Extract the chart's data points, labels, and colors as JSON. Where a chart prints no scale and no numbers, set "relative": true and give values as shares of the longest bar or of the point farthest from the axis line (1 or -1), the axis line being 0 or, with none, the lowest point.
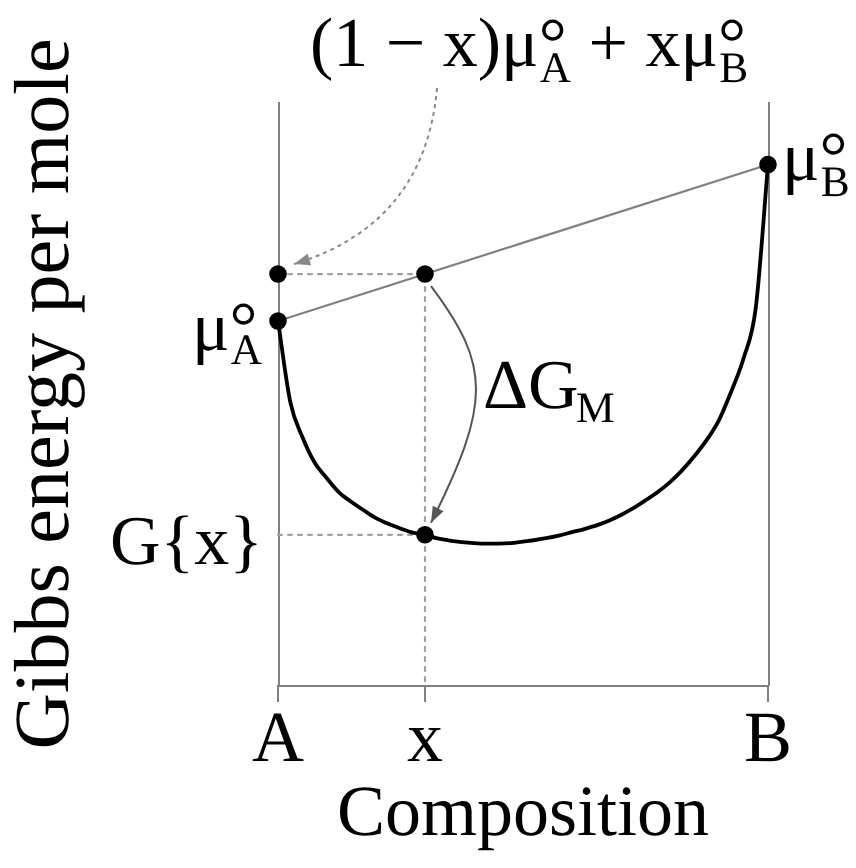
{
  "chart_data": {
    "type": "line",
    "xlabel": "Composition",
    "ylabel": "Gibbs energy per mole",
    "relative": true,
    "categories": [
      "A",
      null,
      null,
      null,
      null,
      null,
      null,
      null,
      null,
      null,
      null,
      null,
      "x",
      null,
      null,
      null,
      null,
      null,
      null,
      null,
      null,
      null,
      null,
      null,
      null,
      null,
      null,
      null,
      null,
      null,
      null,
      null,
      null,
      null,
      null,
      null,
      null,
      null,
      null,
      null,
      "B"
    ],
    "tick_labels": "x",
    "grid": false,
    "legend": false,
    "marker": "none",
    "series": [
      {
        "color": "#000000",
        "values": [
          0.7,
          0.545,
          0.477,
          0.428,
          0.398,
          0.371,
          0.353,
          0.337,
          0.322,
          0.311,
          0.302,
          0.294,
          0.29,
          0.283,
          0.279,
          0.276,
          0.274,
          0.273,
          0.273,
          0.274,
          0.277,
          0.28,
          0.284,
          0.289,
          0.295,
          0.301,
          0.308,
          0.317,
          0.328,
          0.341,
          0.356,
          0.372,
          0.391,
          0.414,
          0.441,
          0.472,
          0.51,
          0.565,
          0.628,
          0.725,
          1
        ]
      },
      {
        "color": "#808080",
        "x": [
          "A",
          "B"
        ],
        "values": [
          0.7,
          1
        ]
      },
      {
        "color": "#a0a0a0",
        "line_style": "dotted",
        "x": [
          "A",
          "x",
          "x"
        ],
        "values": [
          0.79,
          0.79,
          0
        ]
      },
      {
        "color": "#a0a0a0",
        "line_style": "dotted",
        "x": [
          "A",
          "x"
        ],
        "values": [
          0.29,
          0.29
        ]
      },
      {
        "type": "scatter",
        "marker": "circle",
        "color": "#000000",
        "x": [
          "A",
          "A",
          "x",
          "x",
          "B"
        ],
        "values": [
          0.79,
          0.7,
          0.79,
          0.29,
          1
        ]
      }
    ],
    "ref_lines": [
      {
        "axis": "x",
        "value": "A",
        "color": "#808080"
      },
      {
        "axis": "x",
        "value": "B",
        "color": "#808080"
      }
    ],
    "annotations": [
      {
        "text": "(1 − x)μ°$_{A}$ + xμ°$_{B}$",
        "x": "A",
        "y": 0.79
      },
      {
        "text": "μ°$_{A}$",
        "x": "A",
        "y": 0.7
      },
      {
        "text": "μ°$_{B}$",
        "x": "B",
        "y": 1
      },
      {
        "text": "ΔG$_{M}$",
        "x": "x",
        "y": 0.54
      },
      {
        "text": "G{x}",
        "x": "A",
        "y": 0.29
      }
    ]
  }
}
